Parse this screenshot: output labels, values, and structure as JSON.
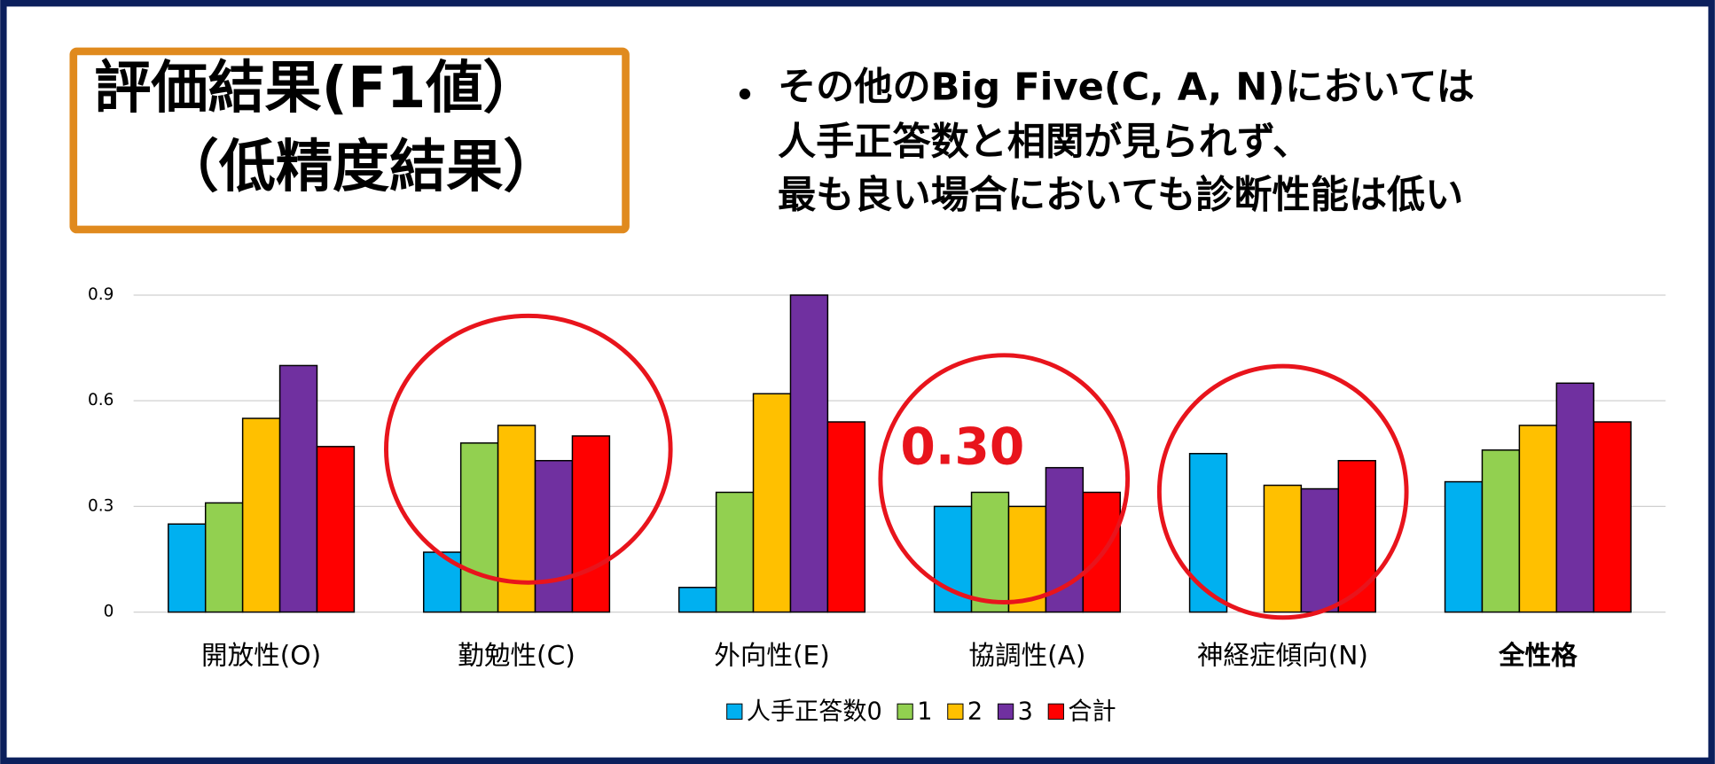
{
  "header": {
    "title_lines": [
      "評価結果(F1値）",
      "（低精度結果）"
    ],
    "bullet_lines": [
      "その他のBig Five(C, A, N)においては",
      "人手正答数と相関が見られず、",
      "最も良い場合においても診断性能は低い"
    ]
  },
  "chart_data": {
    "type": "bar",
    "categories": [
      "開放性(O)",
      "勤勉性(C)",
      "外向性(E)",
      "協調性(A)",
      "神経症傾向(N)",
      "全性格"
    ],
    "series": [
      {
        "name": "人手正答数0",
        "color": "#00b0f0",
        "values": [
          0.25,
          0.17,
          0.07,
          0.3,
          0.45,
          0.37
        ]
      },
      {
        "name": "1",
        "color": "#92d050",
        "values": [
          0.31,
          0.48,
          0.34,
          0.34,
          null,
          0.46
        ]
      },
      {
        "name": "2",
        "color": "#ffc000",
        "values": [
          0.55,
          0.53,
          0.62,
          0.3,
          0.36,
          0.53
        ]
      },
      {
        "name": "3",
        "color": "#7030a0",
        "values": [
          0.7,
          0.43,
          0.9,
          0.41,
          0.35,
          0.65
        ]
      },
      {
        "name": "合計",
        "color": "#ff0000",
        "values": [
          0.47,
          0.5,
          0.54,
          0.34,
          0.43,
          0.54
        ]
      }
    ],
    "ylim": [
      0,
      0.9
    ],
    "yticks": [
      0,
      0.3,
      0.6,
      0.9
    ],
    "grid": true,
    "legend": "bottom",
    "annotation": "0.30"
  }
}
